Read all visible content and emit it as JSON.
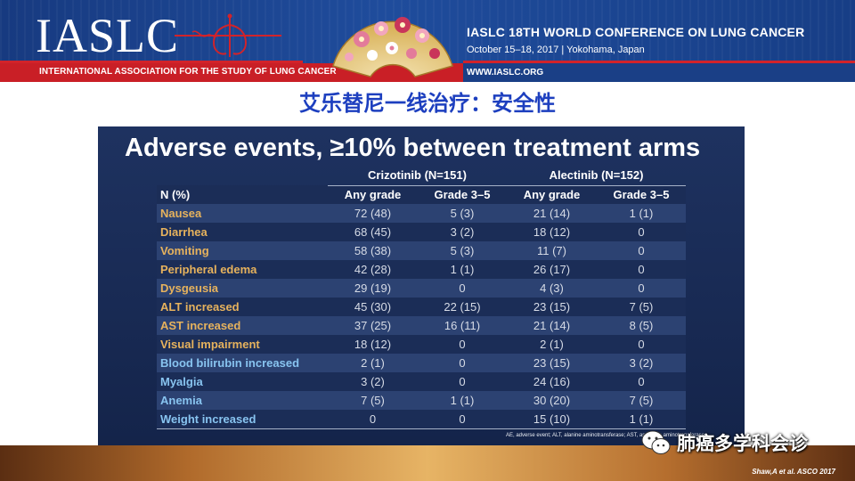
{
  "header": {
    "logo": "IASLC",
    "organization": "INTERNATIONAL ASSOCIATION FOR THE STUDY OF LUNG CANCER",
    "conference_title": "IASLC 18TH WORLD CONFERENCE ON LUNG CANCER",
    "conference_dates": "October 15–18, 2017 | Yokohama, Japan",
    "website": "WWW.IASLC.ORG"
  },
  "chinese_title": "艾乐替尼一线治疗：安全性",
  "slide": {
    "title": "Adverse events, ≥10% between treatment arms",
    "groups": [
      "Crizotinib (N=151)",
      "Alectinib (N=152)"
    ],
    "columns": [
      "N (%)",
      "Any grade",
      "Grade  3–5",
      "Any grade",
      "Grade 3–5"
    ],
    "rows": [
      {
        "name": "Nausea",
        "color": "orange",
        "values": [
          "72 (48)",
          "5 (3)",
          "21 (14)",
          "1 (1)"
        ]
      },
      {
        "name": "Diarrhea",
        "color": "orange",
        "values": [
          "68 (45)",
          "3 (2)",
          "18 (12)",
          "0"
        ]
      },
      {
        "name": "Vomiting",
        "color": "orange",
        "values": [
          "58 (38)",
          "5 (3)",
          "11 (7)",
          "0"
        ]
      },
      {
        "name": "Peripheral edema",
        "color": "orange",
        "values": [
          "42 (28)",
          "1 (1)",
          "26 (17)",
          "0"
        ]
      },
      {
        "name": "Dysgeusia",
        "color": "orange",
        "values": [
          "29 (19)",
          "0",
          "4 (3)",
          "0"
        ]
      },
      {
        "name": "ALT increased",
        "color": "orange",
        "values": [
          "45 (30)",
          "22 (15)",
          "23 (15)",
          "7 (5)"
        ]
      },
      {
        "name": "AST increased",
        "color": "orange",
        "values": [
          "37 (25)",
          "16 (11)",
          "21 (14)",
          "8 (5)"
        ]
      },
      {
        "name": "Visual impairment",
        "color": "orange",
        "values": [
          "18 (12)",
          "0",
          "2 (1)",
          "0"
        ]
      },
      {
        "name": "Blood bilirubin increased",
        "color": "blue",
        "values": [
          "2 (1)",
          "0",
          "23 (15)",
          "3 (2)"
        ]
      },
      {
        "name": "Myalgia",
        "color": "blue",
        "values": [
          "3 (2)",
          "0",
          "24 (16)",
          "0"
        ]
      },
      {
        "name": "Anemia",
        "color": "blue",
        "values": [
          "7 (5)",
          "1 (1)",
          "30 (20)",
          "7 (5)"
        ]
      },
      {
        "name": "Weight increased",
        "color": "blue",
        "values": [
          "0",
          "0",
          "15 (10)",
          "1 (1)"
        ]
      }
    ],
    "footnote": "AE, adverse event; ALT, alanine aminotransferase; AST, aspartate aminotransferase"
  },
  "citation": "Shaw,A et al. ASCO 2017",
  "watermark": {
    "text": "肺癌多学科会诊",
    "icon": "wechat-icon"
  },
  "colors": {
    "banner_blue": "#1f4c9c",
    "banner_red": "#c91f26",
    "title_blue": "#1d3fbf",
    "panel_navy": "#1b2d57",
    "gi_ae_orange": "#e6b25d",
    "other_ae_blue": "#88c4f0"
  }
}
